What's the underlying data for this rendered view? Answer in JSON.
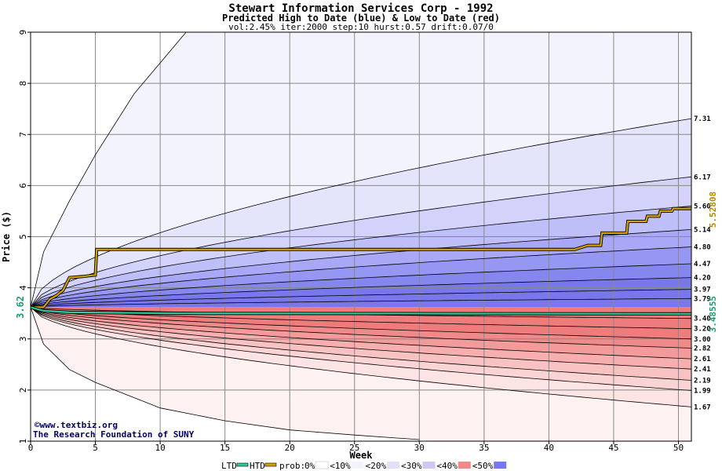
{
  "header": {
    "title": "Stewart Information Services Corp - 1992",
    "subtitle": "Predicted High to Date (blue) &  Low to Date (red)",
    "params": "vol:2.45% iter:2000 step:10 hurst:0.57 drift:0.07/0"
  },
  "credits": {
    "line1": "©www.textbiz.org",
    "line2": "The Research Foundation of SUNY"
  },
  "legend": {
    "ltd": "LTD",
    "htd": "HTD",
    "prob_prefix": "prob:",
    "buckets": [
      "0%",
      "10%",
      "20%",
      "30%",
      "40%",
      "50%"
    ]
  },
  "chart_data": {
    "type": "area",
    "xlabel": "Week",
    "ylabel": "Price ($)",
    "xlim": [
      0,
      51
    ],
    "ylim": [
      1,
      9
    ],
    "x_ticks": [
      0,
      5,
      10,
      15,
      20,
      25,
      30,
      35,
      40,
      45,
      50
    ],
    "y_ticks": [
      1,
      2,
      3,
      4,
      5,
      6,
      7,
      8,
      9
    ],
    "grid": true,
    "start_price": 3.62,
    "start_price_label": "3.62",
    "current_high_label": "5.52808",
    "current_low_label": "3.48555",
    "upper_levels": [
      7.31,
      6.17,
      5.6,
      5.14,
      4.8,
      4.47,
      4.2,
      3.97,
      3.79
    ],
    "upper_labels": [
      "7.31",
      "6.17",
      "5.60",
      "5.14",
      "4.80",
      "4.47",
      "4.20",
      "3.97",
      "3.79"
    ],
    "lower_levels": [
      3.4,
      3.2,
      3.0,
      2.82,
      2.61,
      2.41,
      2.19,
      1.99,
      1.67
    ],
    "lower_labels": [
      "3.40",
      "3.20",
      "3.00",
      "2.82",
      "2.61",
      "2.41",
      "2.19",
      "1.99",
      "1.67"
    ],
    "extreme_high_envelope": [
      [
        0,
        3.62
      ],
      [
        1,
        4.7
      ],
      [
        3,
        5.7
      ],
      [
        5,
        6.6
      ],
      [
        8,
        7.8
      ],
      [
        12,
        9.0
      ]
    ],
    "extreme_low_envelope": [
      [
        0,
        3.62
      ],
      [
        1,
        2.9
      ],
      [
        3,
        2.4
      ],
      [
        5,
        2.15
      ],
      [
        10,
        1.65
      ],
      [
        15,
        1.4
      ],
      [
        20,
        1.22
      ],
      [
        25,
        1.12
      ],
      [
        30,
        1.03
      ]
    ],
    "series": [
      {
        "name": "HTD",
        "color": "#d4a300",
        "points": [
          [
            0,
            3.62
          ],
          [
            1,
            3.62
          ],
          [
            1.5,
            3.78
          ],
          [
            2,
            3.85
          ],
          [
            2.5,
            3.95
          ],
          [
            3,
            4.2
          ],
          [
            4,
            4.22
          ],
          [
            5,
            4.25
          ],
          [
            5.1,
            4.75
          ],
          [
            42,
            4.75
          ],
          [
            43,
            4.83
          ],
          [
            44,
            4.83
          ],
          [
            44.1,
            5.07
          ],
          [
            46,
            5.07
          ],
          [
            46.1,
            5.3
          ],
          [
            47.5,
            5.3
          ],
          [
            47.6,
            5.4
          ],
          [
            48.5,
            5.4
          ],
          [
            48.6,
            5.5
          ],
          [
            49.5,
            5.5
          ],
          [
            49.6,
            5.55
          ],
          [
            51,
            5.55
          ]
        ]
      },
      {
        "name": "LTD",
        "color": "#2ecc9a",
        "points": [
          [
            0,
            3.62
          ],
          [
            1,
            3.55
          ],
          [
            3,
            3.52
          ],
          [
            12,
            3.5
          ],
          [
            51,
            3.49
          ]
        ]
      }
    ],
    "colors": {
      "blue_bands": [
        "#f3f3fd",
        "#e4e4fb",
        "#d2d2fa",
        "#bebef8",
        "#a8a8f6",
        "#9696f3",
        "#8686ef",
        "#7878ec"
      ],
      "red_bands": [
        "#fdf1f1",
        "#fce4e4",
        "#fad4d4",
        "#f8c2c2",
        "#f6aeae",
        "#f39a9a",
        "#f08a8a",
        "#ee7c7c"
      ],
      "htd": "#d4a300",
      "ltd": "#2ecc9a",
      "high_label": "#b58a00",
      "low_label": "#1aa070"
    }
  }
}
